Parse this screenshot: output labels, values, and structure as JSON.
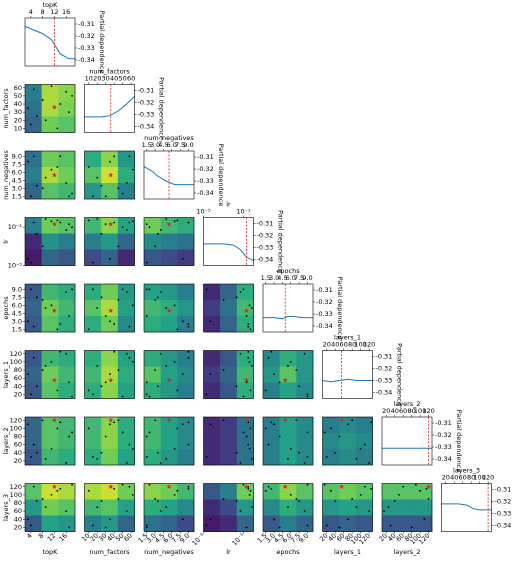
{
  "chart_data": {
    "type": "objective-matrix",
    "pd_label": "Partial dependence",
    "pd_ylim": [
      -0.345,
      -0.305
    ],
    "pd_yticks": [
      -0.31,
      -0.32,
      -0.33,
      -0.34
    ],
    "zlim": [
      -0.345,
      -0.305
    ],
    "colormap": [
      "#fde725",
      "#7ad151",
      "#22a884",
      "#2a788e",
      "#414487",
      "#440154"
    ],
    "line_color": "#1f77b4",
    "best_color": "#d62728",
    "sample_color": "#000000",
    "dimensions": [
      {
        "name": "topK",
        "xlim": [
          2,
          19
        ],
        "xticks": [
          4,
          8,
          12,
          16
        ]
      },
      {
        "name": "num_factors",
        "xlim": [
          5,
          64
        ],
        "xticks": [
          10,
          20,
          30,
          40,
          50,
          60
        ]
      },
      {
        "name": "num_negatives",
        "xlim": [
          1,
          10
        ],
        "xticks": [
          1.5,
          {
            "value": 3,
            "label": "3.0"
          },
          4.5,
          {
            "value": 6,
            "label": "6.0"
          },
          7.5,
          {
            "value": 9,
            "label": "9.0"
          }
        ]
      },
      {
        "name": "lr",
        "log": true,
        "xlim": [
          1e-05,
          1
        ],
        "xticks": [
          {
            "value": 1e-05,
            "label": "10⁻⁵"
          },
          {
            "value": 0.1,
            "label": "10⁻¹"
          }
        ]
      },
      {
        "name": "epochs",
        "xlim": [
          1,
          10
        ],
        "xticks": [
          1.5,
          {
            "value": 3,
            "label": "3.0"
          },
          4.5,
          {
            "value": 6,
            "label": "6.0"
          },
          7.5,
          {
            "value": 9,
            "label": "9.0"
          }
        ]
      },
      {
        "name": "layers_1",
        "xlim": [
          10,
          128
        ],
        "xticks": [
          20,
          40,
          60,
          80,
          100,
          120
        ]
      },
      {
        "name": "layers_2",
        "xlim": [
          10,
          128
        ],
        "xticks": [
          20,
          40,
          60,
          80,
          100,
          120
        ]
      },
      {
        "name": "layers_3",
        "xlim": [
          10,
          128
        ],
        "xticks": [
          20,
          40,
          60,
          80,
          100,
          120
        ]
      }
    ],
    "diagonal": [
      {
        "x": [
          2,
          5,
          8,
          11,
          14,
          17,
          19
        ],
        "y": [
          -0.312,
          -0.315,
          -0.318,
          -0.323,
          -0.335,
          -0.339,
          -0.339
        ]
      },
      {
        "x": [
          5,
          15,
          25,
          35,
          45,
          55,
          64
        ],
        "y": [
          -0.332,
          -0.332,
          -0.332,
          -0.331,
          -0.327,
          -0.321,
          -0.315
        ]
      },
      {
        "x": [
          1,
          2.5,
          3.5,
          5,
          6.5,
          8,
          10
        ],
        "y": [
          -0.318,
          -0.322,
          -0.326,
          -0.33,
          -0.333,
          -0.333,
          -0.333
        ]
      },
      {
        "x": [
          1e-05,
          0.0001,
          0.001,
          0.01,
          0.05,
          0.2,
          1
        ],
        "y": [
          -0.327,
          -0.327,
          -0.327,
          -0.328,
          -0.332,
          -0.338,
          -0.341
        ]
      },
      {
        "x": [
          1,
          3,
          4.5,
          5.5,
          6.5,
          8,
          10
        ],
        "y": [
          -0.333,
          -0.333,
          -0.334,
          -0.332,
          -0.332,
          -0.333,
          -0.333
        ]
      },
      {
        "x": [
          10,
          30,
          50,
          70,
          90,
          110,
          128
        ],
        "y": [
          -0.33,
          -0.331,
          -0.33,
          -0.329,
          -0.33,
          -0.33,
          -0.33
        ]
      },
      {
        "x": [
          10,
          30,
          50,
          70,
          90,
          110,
          128
        ],
        "y": [
          -0.331,
          -0.331,
          -0.331,
          -0.331,
          -0.331,
          -0.331,
          -0.331
        ]
      },
      {
        "x": [
          10,
          30,
          50,
          70,
          85,
          100,
          128
        ],
        "y": [
          -0.322,
          -0.322,
          -0.322,
          -0.323,
          -0.326,
          -0.327,
          -0.327
        ]
      }
    ],
    "heatmaps": [
      [],
      [
        [
          [
            -0.322,
            -0.34,
            -0.338
          ],
          [
            -0.32,
            -0.34,
            -0.337
          ],
          [
            -0.318,
            -0.336,
            -0.334
          ]
        ]
      ],
      [
        [
          [
            -0.32,
            -0.336,
            -0.334
          ],
          [
            -0.322,
            -0.34,
            -0.336
          ],
          [
            -0.318,
            -0.334,
            -0.332
          ]
        ],
        [
          [
            -0.33,
            -0.338,
            -0.326
          ],
          [
            -0.334,
            -0.342,
            -0.33
          ],
          [
            -0.326,
            -0.334,
            -0.322
          ]
        ]
      ],
      [
        [
          [
            -0.322,
            -0.336,
            -0.334
          ],
          [
            -0.31,
            -0.325,
            -0.322
          ],
          [
            -0.308,
            -0.318,
            -0.316
          ]
        ],
        [
          [
            -0.332,
            -0.338,
            -0.328
          ],
          [
            -0.322,
            -0.326,
            -0.318
          ],
          [
            -0.314,
            -0.318,
            -0.31
          ]
        ],
        [
          [
            -0.336,
            -0.332,
            -0.33
          ],
          [
            -0.324,
            -0.322,
            -0.32
          ],
          [
            -0.316,
            -0.314,
            -0.312
          ]
        ]
      ],
      [
        [
          [
            -0.316,
            -0.332,
            -0.33
          ],
          [
            -0.318,
            -0.336,
            -0.332
          ],
          [
            -0.316,
            -0.334,
            -0.33
          ]
        ],
        [
          [
            -0.33,
            -0.336,
            -0.326
          ],
          [
            -0.334,
            -0.34,
            -0.328
          ],
          [
            -0.33,
            -0.336,
            -0.324
          ]
        ],
        [
          [
            -0.328,
            -0.326,
            -0.322
          ],
          [
            -0.332,
            -0.33,
            -0.326
          ],
          [
            -0.33,
            -0.328,
            -0.322
          ]
        ],
        [
          [
            -0.31,
            -0.318,
            -0.33
          ],
          [
            -0.312,
            -0.32,
            -0.332
          ],
          [
            -0.31,
            -0.318,
            -0.33
          ]
        ]
      ],
      [
        [
          [
            -0.316,
            -0.332,
            -0.33
          ],
          [
            -0.318,
            -0.336,
            -0.332
          ],
          [
            -0.316,
            -0.334,
            -0.33
          ]
        ],
        [
          [
            -0.33,
            -0.338,
            -0.328
          ],
          [
            -0.332,
            -0.34,
            -0.33
          ],
          [
            -0.33,
            -0.338,
            -0.328
          ]
        ],
        [
          [
            -0.33,
            -0.326,
            -0.322
          ],
          [
            -0.334,
            -0.328,
            -0.324
          ],
          [
            -0.33,
            -0.326,
            -0.322
          ]
        ],
        [
          [
            -0.31,
            -0.316,
            -0.33
          ],
          [
            -0.312,
            -0.318,
            -0.332
          ],
          [
            -0.31,
            -0.316,
            -0.33
          ]
        ],
        [
          [
            -0.324,
            -0.33,
            -0.326
          ],
          [
            -0.326,
            -0.334,
            -0.326
          ],
          [
            -0.322,
            -0.328,
            -0.324
          ]
        ]
      ],
      [
        [
          [
            -0.318,
            -0.334,
            -0.332
          ],
          [
            -0.318,
            -0.334,
            -0.332
          ],
          [
            -0.316,
            -0.332,
            -0.33
          ]
        ],
        [
          [
            -0.332,
            -0.338,
            -0.33
          ],
          [
            -0.332,
            -0.338,
            -0.33
          ],
          [
            -0.33,
            -0.336,
            -0.328
          ]
        ],
        [
          [
            -0.332,
            -0.328,
            -0.324
          ],
          [
            -0.332,
            -0.328,
            -0.324
          ],
          [
            -0.33,
            -0.326,
            -0.322
          ]
        ],
        [
          [
            -0.31,
            -0.312,
            -0.32
          ],
          [
            -0.31,
            -0.312,
            -0.32
          ],
          [
            -0.31,
            -0.312,
            -0.32
          ]
        ],
        [
          [
            -0.322,
            -0.328,
            -0.324
          ],
          [
            -0.322,
            -0.328,
            -0.324
          ],
          [
            -0.322,
            -0.328,
            -0.324
          ]
        ],
        [
          [
            -0.322,
            -0.324,
            -0.322
          ],
          [
            -0.324,
            -0.326,
            -0.324
          ],
          [
            -0.322,
            -0.324,
            -0.322
          ]
        ]
      ],
      [
        [
          [
            -0.334,
            -0.342,
            -0.34
          ],
          [
            -0.326,
            -0.336,
            -0.334
          ],
          [
            -0.316,
            -0.328,
            -0.326
          ]
        ],
        [
          [
            -0.34,
            -0.342,
            -0.336
          ],
          [
            -0.332,
            -0.334,
            -0.328
          ],
          [
            -0.322,
            -0.326,
            -0.318
          ]
        ],
        [
          [
            -0.338,
            -0.336,
            -0.332
          ],
          [
            -0.33,
            -0.328,
            -0.324
          ],
          [
            -0.32,
            -0.318,
            -0.314
          ]
        ],
        [
          [
            -0.316,
            -0.322,
            -0.336
          ],
          [
            -0.31,
            -0.314,
            -0.326
          ],
          [
            -0.308,
            -0.31,
            -0.318
          ]
        ],
        [
          [
            -0.332,
            -0.338,
            -0.334
          ],
          [
            -0.324,
            -0.33,
            -0.326
          ],
          [
            -0.316,
            -0.322,
            -0.318
          ]
        ],
        [
          [
            -0.334,
            -0.336,
            -0.334
          ],
          [
            -0.326,
            -0.328,
            -0.326
          ],
          [
            -0.316,
            -0.318,
            -0.316
          ]
        ],
        [
          [
            -0.334,
            -0.334,
            -0.334
          ],
          [
            -0.326,
            -0.326,
            -0.326
          ],
          [
            -0.316,
            -0.316,
            -0.316
          ]
        ]
      ]
    ],
    "samples": [
      [
        4,
        15,
        1.5,
        2e-05,
        9,
        20,
        30,
        25
      ],
      [
        5,
        58,
        9,
        0.3,
        2,
        110,
        60,
        120
      ],
      [
        8,
        45,
        3,
        0.001,
        7,
        80,
        120,
        90
      ],
      [
        13,
        10,
        7,
        0.5,
        1.5,
        30,
        100,
        110
      ],
      [
        16,
        55,
        4,
        0.05,
        8.5,
        120,
        15,
        60
      ],
      [
        17,
        30,
        1.5,
        0.2,
        4,
        50,
        80,
        20
      ],
      [
        11,
        62,
        6.5,
        0.4,
        6,
        100,
        50,
        100
      ],
      [
        3,
        35,
        8,
        5e-05,
        3,
        70,
        110,
        40
      ],
      [
        18,
        50,
        2,
        0.1,
        9,
        15,
        90,
        125
      ],
      [
        9,
        20,
        5,
        0.7,
        5.5,
        90,
        25,
        70
      ],
      [
        14,
        40,
        9,
        0.3,
        2.5,
        125,
        115,
        115
      ],
      [
        6,
        25,
        3.5,
        0.02,
        7.5,
        40,
        40,
        85
      ]
    ],
    "best": [
      12,
      36,
      5.5,
      0.2,
      5,
      55,
      120,
      120
    ]
  }
}
